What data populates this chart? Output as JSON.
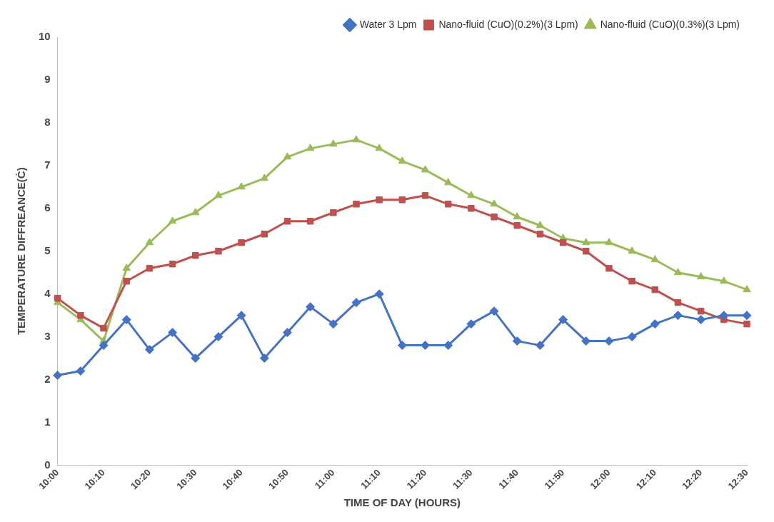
{
  "chart_data": {
    "type": "line",
    "xlabel": "TIME OF DAY (HOURS)",
    "ylabel": "TEMPERATURE DIFFREANCE(Ċ)",
    "categories": [
      "10:00",
      null,
      "10:10",
      null,
      "10:20",
      null,
      "10:30",
      null,
      "10:40",
      null,
      "10:50",
      null,
      "11:00",
      null,
      "11:10",
      null,
      "11:20",
      null,
      "11:30",
      null,
      "11:40",
      null,
      "11:50",
      null,
      "12:00",
      null,
      "12:10",
      null,
      "12:20",
      null,
      "12:30"
    ],
    "series": [
      {
        "name": "Water 3 Lpm",
        "color": "#4472c4",
        "marker": "diamond",
        "values": [
          2.1,
          2.2,
          2.8,
          3.4,
          2.7,
          3.1,
          2.5,
          3.0,
          3.5,
          2.5,
          3.1,
          3.7,
          3.3,
          3.8,
          4.0,
          2.8,
          2.8,
          2.8,
          3.3,
          3.6,
          2.9,
          2.8,
          3.4,
          2.9,
          2.9,
          3.0,
          3.3,
          3.5,
          3.4,
          3.5,
          3.5
        ]
      },
      {
        "name": "Nano-fluid (CuO)(0.2%)(3 Lpm)",
        "color": "#c0504d",
        "marker": "square",
        "values": [
          3.9,
          3.5,
          3.2,
          4.3,
          4.6,
          4.7,
          4.9,
          5.0,
          5.2,
          5.4,
          5.7,
          5.7,
          5.9,
          6.1,
          6.2,
          6.2,
          6.3,
          6.1,
          6.0,
          5.8,
          5.6,
          5.4,
          5.2,
          5.0,
          4.6,
          4.3,
          4.1,
          3.8,
          3.6,
          3.4,
          3.3
        ]
      },
      {
        "name": "Nano-fluid (CuO)(0.3%)(3 Lpm)",
        "color": "#9bbb59",
        "marker": "triangle",
        "values": [
          3.8,
          3.4,
          2.9,
          4.6,
          5.2,
          5.7,
          5.9,
          6.3,
          6.5,
          6.7,
          7.2,
          7.4,
          7.5,
          7.6,
          7.4,
          7.1,
          6.9,
          6.6,
          6.3,
          6.1,
          5.8,
          5.6,
          5.3,
          5.2,
          5.2,
          5.0,
          4.8,
          4.5,
          4.4,
          4.3,
          4.1
        ]
      }
    ],
    "ylim": [
      0,
      10
    ],
    "yticks": [
      0,
      1,
      2,
      3,
      4,
      5,
      6,
      7,
      8,
      9,
      10
    ],
    "grid": false,
    "legend": "top right",
    "line_style": "solid"
  }
}
